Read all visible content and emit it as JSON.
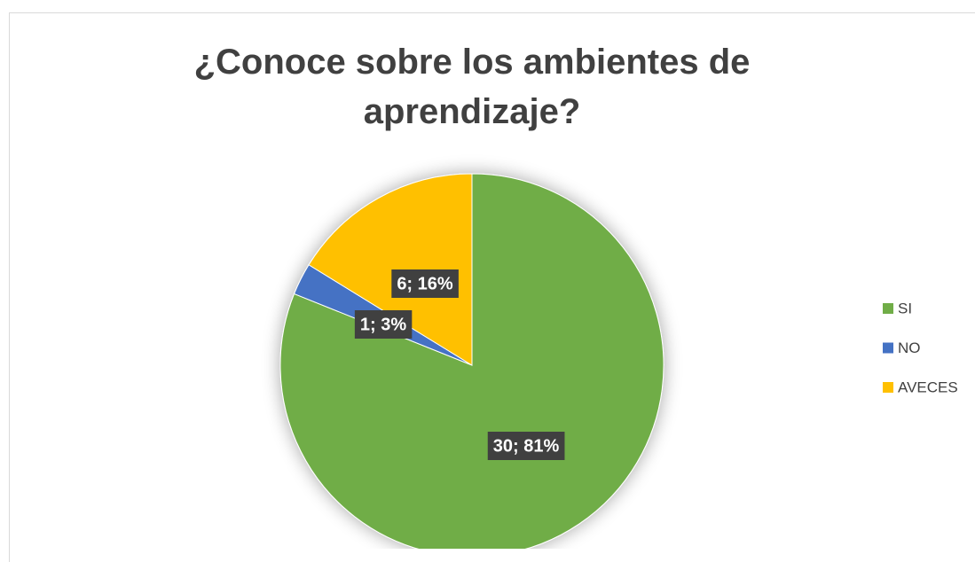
{
  "chart_data": {
    "type": "pie",
    "title": "¿Conoce sobre los ambientes de aprendizaje?",
    "categories": [
      "SI",
      "NO",
      "AVECES"
    ],
    "values": [
      30,
      1,
      6
    ],
    "value_labels": [
      "30; 81%",
      "1; 3%",
      "6; 16%"
    ],
    "colors": [
      "#70ad47",
      "#4472c4",
      "#ffc000"
    ],
    "legend": "right"
  }
}
